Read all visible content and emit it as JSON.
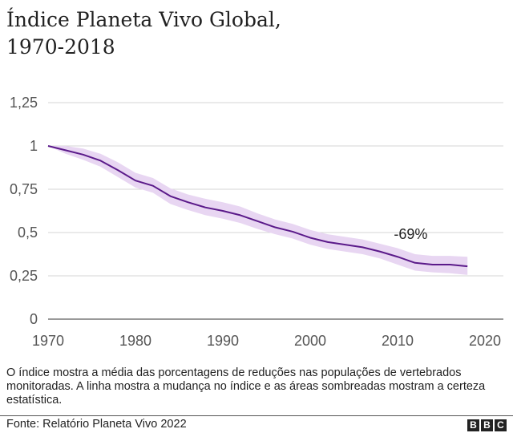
{
  "chart_data": {
    "type": "line",
    "title": "Índice Planeta Vivo Global, 1970-2018",
    "title_lines": [
      "Índice Planeta Vivo Global,",
      "1970-2018"
    ],
    "xlabel": "",
    "ylabel": "",
    "xlim": [
      1970,
      2020
    ],
    "ylim": [
      0,
      1.25
    ],
    "x_ticks": [
      "1970",
      "1980",
      "1990",
      "2000",
      "2010",
      "2020"
    ],
    "y_ticks": [
      "0",
      "0,25",
      "0,5",
      "0,75",
      "1",
      "1,25"
    ],
    "grid": true,
    "line_color": "#5b1a8a",
    "band_color": "#e8d6f2",
    "series": [
      {
        "x": [
          1970,
          1972,
          1974,
          1976,
          1978,
          1980,
          1982,
          1984,
          1986,
          1988,
          1990,
          1992,
          1994,
          1996,
          1998,
          2000,
          2002,
          2004,
          2006,
          2008,
          2010,
          2012,
          2014,
          2016,
          2018
        ],
        "y": [
          1.0,
          0.975,
          0.95,
          0.915,
          0.86,
          0.8,
          0.77,
          0.71,
          0.675,
          0.645,
          0.625,
          0.6,
          0.565,
          0.53,
          0.505,
          0.47,
          0.445,
          0.43,
          0.415,
          0.39,
          0.36,
          0.325,
          0.315,
          0.315,
          0.305
        ],
        "lower": [
          1.0,
          0.955,
          0.92,
          0.88,
          0.82,
          0.76,
          0.73,
          0.665,
          0.63,
          0.6,
          0.58,
          0.555,
          0.52,
          0.49,
          0.465,
          0.43,
          0.405,
          0.39,
          0.375,
          0.35,
          0.315,
          0.28,
          0.27,
          0.265,
          0.255
        ],
        "upper": [
          1.0,
          1.0,
          0.985,
          0.955,
          0.905,
          0.845,
          0.815,
          0.755,
          0.72,
          0.695,
          0.675,
          0.65,
          0.61,
          0.575,
          0.55,
          0.515,
          0.49,
          0.475,
          0.46,
          0.435,
          0.41,
          0.375,
          0.365,
          0.365,
          0.36
        ]
      }
    ],
    "annotations": [
      {
        "text": "-69%",
        "x": 2011.5,
        "y": 0.49
      }
    ]
  },
  "note": "O índice mostra a média das porcentagens de reduções nas populações de vertebrados monitoradas. A linha mostra a mudança no índice e as áreas sombreadas mostram a certeza estatística.",
  "source": "Fonte: Relatório Planeta Vivo 2022",
  "logo": [
    "B",
    "B",
    "C"
  ]
}
